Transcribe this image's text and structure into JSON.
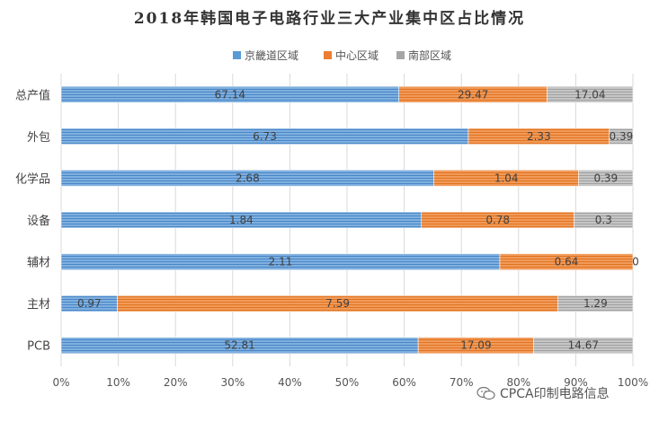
{
  "chart_data": {
    "type": "bar",
    "orientation": "horizontal",
    "stacked": "percent",
    "title": "2018年韩国电子电路行业三大产业集中区占比情况",
    "categories": [
      "总产值",
      "外包",
      "化学品",
      "设备",
      "辅材",
      "主材",
      "PCB"
    ],
    "series": [
      {
        "name": "京畿道区域",
        "color": "#5b9bd5",
        "values": [
          67.14,
          6.73,
          2.68,
          1.84,
          2.11,
          0.97,
          52.81
        ]
      },
      {
        "name": "中心区域",
        "color": "#ed7d31",
        "values": [
          29.47,
          2.33,
          1.04,
          0.78,
          0.64,
          7.59,
          17.09
        ]
      },
      {
        "name": "南部区域",
        "color": "#a5a5a5",
        "values": [
          17.04,
          0.39,
          0.39,
          0.3,
          0,
          1.29,
          14.67
        ]
      }
    ],
    "xlim": [
      0,
      100
    ],
    "xticks": [
      "0%",
      "10%",
      "20%",
      "30%",
      "40%",
      "50%",
      "60%",
      "70%",
      "80%",
      "90%",
      "100%"
    ],
    "legend_position": "top",
    "grid": true
  },
  "watermark": {
    "text": "CPCA印制电路信息",
    "icon": "wechat-icon"
  }
}
